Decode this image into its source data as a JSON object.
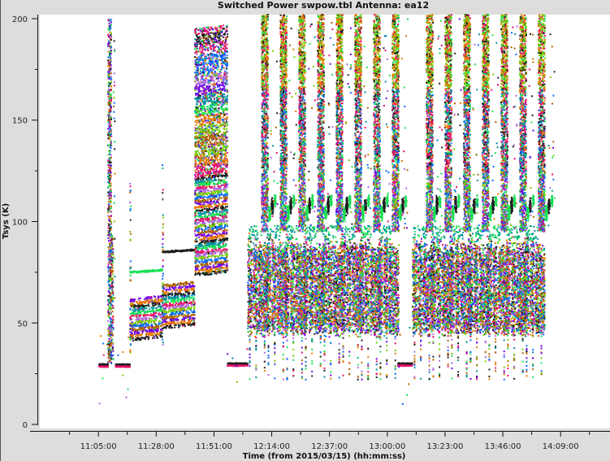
{
  "chart_data": {
    "type": "scatter",
    "title": "Switched Power  swpow.tbl   Antenna: ea12",
    "xlabel": "Time (from 2015/03/15) (hh:mm:ss)",
    "ylabel": "Tsys (K)",
    "xlim": [
      "10:41:40",
      "14:28:40"
    ],
    "ylim": [
      -2,
      202
    ],
    "x_ticks": [
      "11:05:00",
      "11:28:00",
      "11:51:00",
      "12:14:00",
      "12:37:00",
      "13:00:00",
      "13:23:00",
      "13:46:00",
      "14:09:00"
    ],
    "y_ticks": [
      0,
      50,
      100,
      150,
      200
    ],
    "grid": false,
    "legend": "none",
    "series_colors": [
      "#1e1e1e",
      "#e8106a",
      "#0a6cff",
      "#e87800",
      "#18e055",
      "#77cc00",
      "#6f00e8",
      "#00909e",
      "#b068e0",
      "#b06400"
    ],
    "scans": [
      {
        "kind": "flat",
        "start": "11:05:20",
        "end": "11:08:50",
        "tsys": 29
      },
      {
        "kind": "spike",
        "start": "11:08:50",
        "end": "11:10:10",
        "tsys_range": [
          30,
          200
        ]
      },
      {
        "kind": "flat",
        "start": "11:11:45",
        "end": "11:17:35",
        "tsys": 29
      },
      {
        "kind": "bands",
        "start": "11:17:35",
        "end": "11:30:30",
        "tsys_range": [
          41,
          62
        ],
        "extra_line": 75,
        "extra_line_color": "#18e055"
      },
      {
        "kind": "bands",
        "start": "11:30:30",
        "end": "11:43:25",
        "tsys_range": [
          47,
          69
        ],
        "extra_line": 85,
        "extra_line_color": "#1e1e1e"
      },
      {
        "kind": "bands",
        "start": "11:43:25",
        "end": "11:56:25",
        "tsys_range": [
          73,
          122
        ],
        "scatter_range": [
          122,
          195
        ]
      },
      {
        "kind": "flat",
        "start": "11:56:25",
        "end": "12:04:30",
        "tsys": 29.5
      },
      {
        "kind": "flat",
        "start": "13:04:15",
        "end": "13:10:05",
        "tsys": 29.5
      }
    ],
    "cycles": {
      "column_starts": [
        "12:09:58",
        "12:17:24",
        "12:24:50",
        "12:32:16",
        "12:39:42",
        "12:47:08",
        "12:54:34",
        "13:02:00",
        "13:15:34",
        "13:23:00",
        "13:30:26",
        "13:37:53",
        "13:45:19",
        "13:52:45",
        "14:00:11"
      ],
      "column_minutes": 2.6,
      "low_minutes": 5.5,
      "low_range": [
        45,
        95
      ],
      "high_range": [
        95,
        200
      ],
      "blob_tsys": 108
    }
  }
}
